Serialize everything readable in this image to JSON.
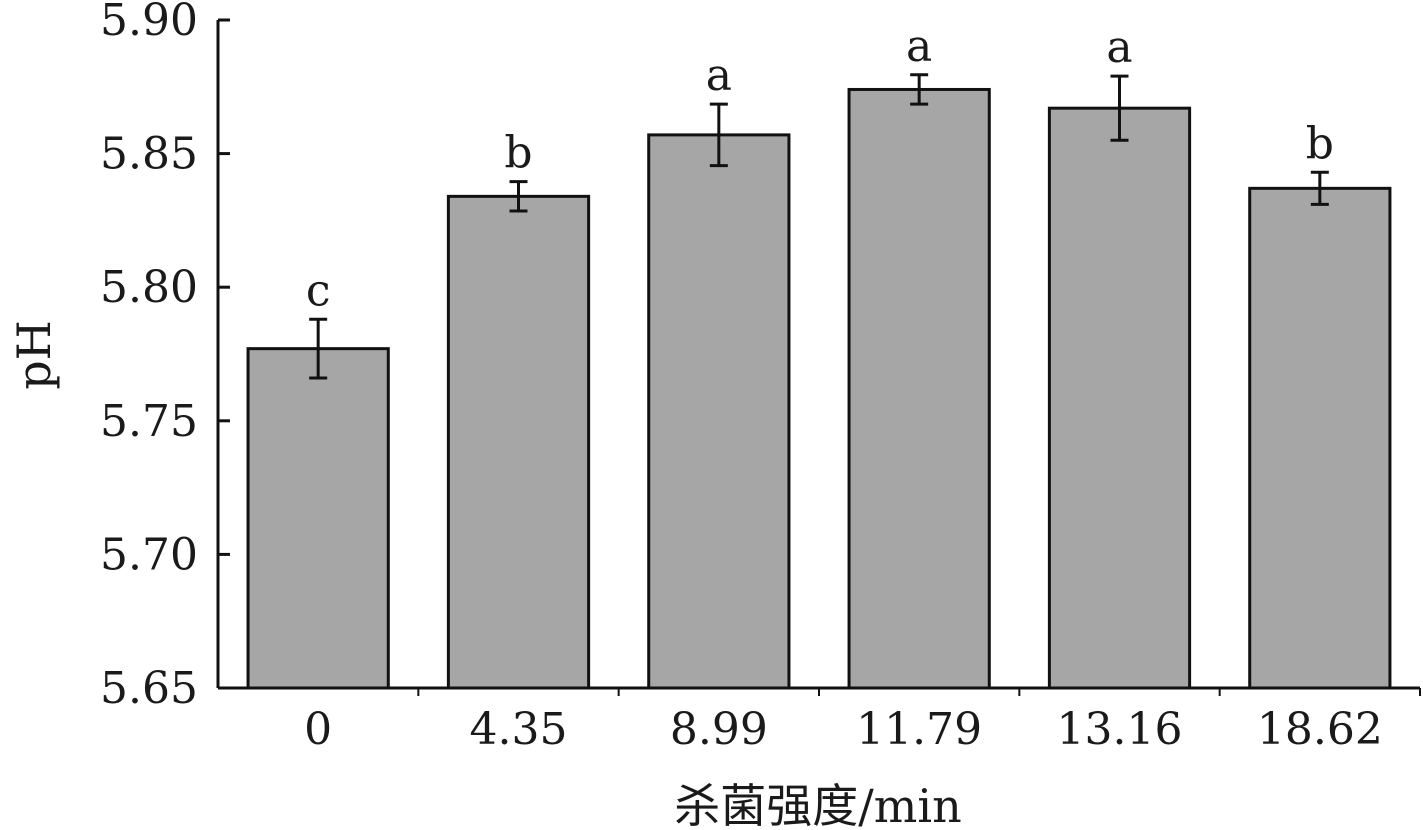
{
  "chart_data": {
    "type": "bar",
    "title": "",
    "xlabel": "杀菌强度/min",
    "ylabel": "pH",
    "categories": [
      "0",
      "4.35",
      "8.99",
      "11.79",
      "13.16",
      "18.62"
    ],
    "values": [
      5.777,
      5.834,
      5.857,
      5.874,
      5.867,
      5.837
    ],
    "errors": [
      0.011,
      0.0055,
      0.0115,
      0.0055,
      0.012,
      0.006
    ],
    "significance": [
      "c",
      "b",
      "a",
      "a",
      "a",
      "b"
    ],
    "ylim": [
      5.65,
      5.9
    ],
    "yticks": [
      "5.65",
      "5.70",
      "5.75",
      "5.80",
      "5.85",
      "5.90"
    ],
    "grid": false,
    "colors": {
      "bar_fill": "#a6a6a6",
      "bar_stroke": "#111111",
      "axis": "#111111"
    }
  }
}
